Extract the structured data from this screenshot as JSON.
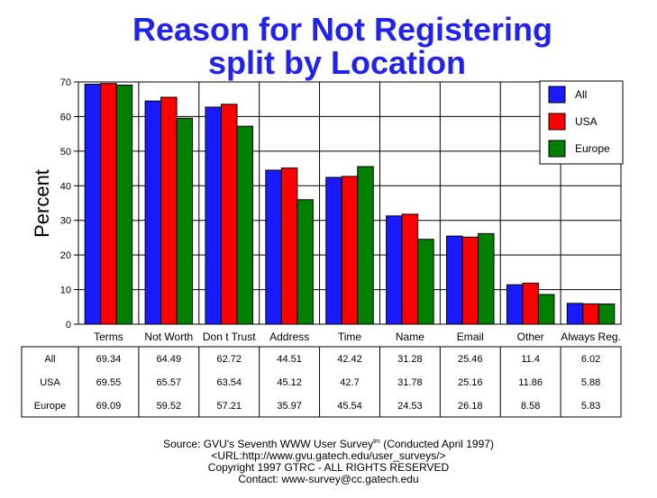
{
  "chart_data": {
    "type": "bar",
    "title_lines": [
      "Reason for Not Registering",
      "split by Location"
    ],
    "ylabel": "Percent",
    "xlabel": "",
    "ylim": [
      0,
      70
    ],
    "yticks": [
      0,
      10,
      20,
      30,
      40,
      50,
      60,
      70
    ],
    "grid": true,
    "legend_position": "top-right",
    "categories": [
      "Terms",
      "Not Worth",
      "Don t Trust",
      "Address",
      "Time",
      "Name",
      "Email",
      "Other",
      "Always Reg."
    ],
    "series": [
      {
        "name": "All",
        "color": "#1a1aff",
        "values": [
          69.34,
          64.49,
          62.72,
          44.51,
          42.42,
          31.28,
          25.46,
          11.4,
          6.02
        ],
        "labels": [
          "69.34",
          "64.49",
          "62.72",
          "44.51",
          "42.42",
          "31.28",
          "25.46",
          "11.4",
          "6.02"
        ]
      },
      {
        "name": "USA",
        "color": "#ff0000",
        "values": [
          69.55,
          65.57,
          63.54,
          45.12,
          42.7,
          31.78,
          25.16,
          11.86,
          5.88
        ],
        "labels": [
          "69.55",
          "65.57",
          "63.54",
          "45.12",
          "42.7",
          "31.78",
          "25.16",
          "11.86",
          "5.88"
        ]
      },
      {
        "name": "Europe",
        "color": "#008000",
        "values": [
          69.09,
          59.52,
          57.21,
          35.97,
          45.54,
          24.53,
          26.18,
          8.58,
          5.83
        ],
        "labels": [
          "69.09",
          "59.52",
          "57.21",
          "35.97",
          "45.54",
          "24.53",
          "26.18",
          "8.58",
          "5.83"
        ]
      }
    ]
  },
  "footer": {
    "source_prefix": "Source: GVU's Seventh WWW User Survey",
    "source_sup": "tm",
    "source_suffix": " (Conducted April 1997)",
    "url": "<URL:http://www.gvu.gatech.edu/user_surveys/>",
    "copyright": "Copyright 1997 GTRC - ALL RIGHTS RESERVED",
    "contact": "Contact: www-survey@cc.gatech.edu"
  }
}
